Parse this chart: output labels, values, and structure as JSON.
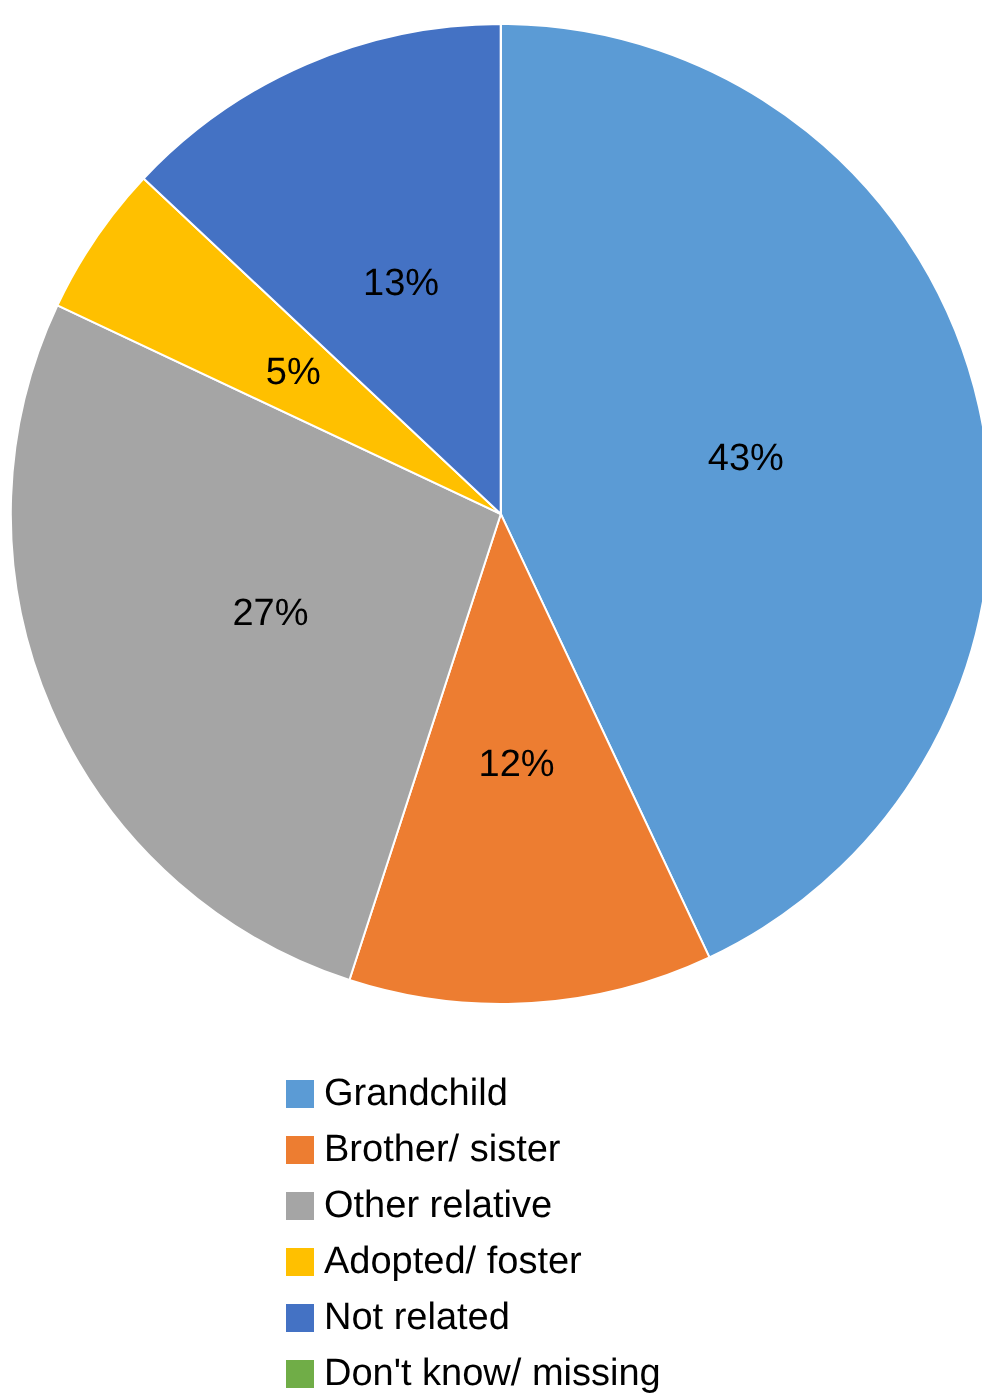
{
  "chart_data": {
    "type": "pie",
    "categories": [
      "Grandchild",
      "Brother/ sister",
      "Other relative",
      "Adopted/ foster",
      "Not related",
      "Don't know/ missing"
    ],
    "values": [
      43,
      12,
      27,
      5,
      13,
      0
    ],
    "value_labels": [
      "43%",
      "12%",
      "27%",
      "5%",
      "13%",
      null
    ],
    "colors": [
      "#5b9bd5",
      "#ed7d31",
      "#a5a5a5",
      "#ffc000",
      "#4472c4",
      "#70ad47"
    ],
    "legend": "bottom"
  }
}
